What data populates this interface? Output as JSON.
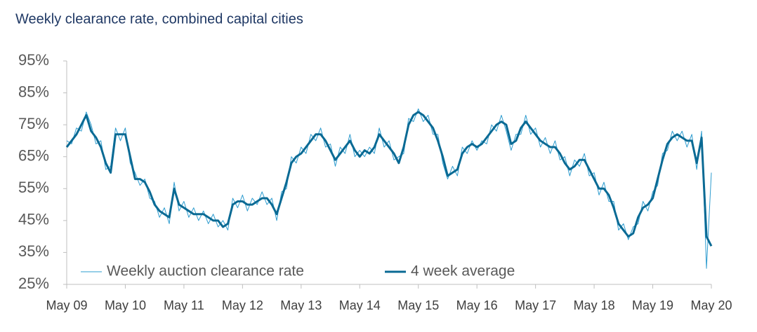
{
  "chart_data": {
    "type": "line",
    "title": "Weekly clearance rate, combined capital cities",
    "categories": [
      "May 09",
      null,
      null,
      null,
      null,
      null,
      null,
      null,
      null,
      null,
      null,
      null,
      "May 10",
      null,
      null,
      null,
      null,
      null,
      null,
      null,
      null,
      null,
      null,
      null,
      "May 11",
      null,
      null,
      null,
      null,
      null,
      null,
      null,
      null,
      null,
      null,
      null,
      "May 12",
      null,
      null,
      null,
      null,
      null,
      null,
      null,
      null,
      null,
      null,
      null,
      "May 13",
      null,
      null,
      null,
      null,
      null,
      null,
      null,
      null,
      null,
      null,
      null,
      "May 14",
      null,
      null,
      null,
      null,
      null,
      null,
      null,
      null,
      null,
      null,
      null,
      "May 15",
      null,
      null,
      null,
      null,
      null,
      null,
      null,
      null,
      null,
      null,
      null,
      "May 16",
      null,
      null,
      null,
      null,
      null,
      null,
      null,
      null,
      null,
      null,
      null,
      "May 17",
      null,
      null,
      null,
      null,
      null,
      null,
      null,
      null,
      null,
      null,
      null,
      "May 18",
      null,
      null,
      null,
      null,
      null,
      null,
      null,
      null,
      null,
      null,
      null,
      "May 19",
      null,
      null,
      null,
      null,
      null,
      null,
      null,
      null,
      null,
      null,
      null,
      "May 20"
    ],
    "series": [
      {
        "name": "Weekly auction clearance rate",
        "color": "#2e9ccf",
        "width": 1,
        "values": [
          70,
          69,
          74,
          73,
          79,
          75,
          69,
          70,
          61,
          62,
          74,
          70,
          74,
          63,
          60,
          56,
          58,
          52,
          51,
          46,
          49,
          44,
          57,
          48,
          51,
          46,
          49,
          45,
          48,
          44,
          47,
          43,
          45,
          42,
          52,
          49,
          53,
          48,
          52,
          50,
          54,
          50,
          52,
          45,
          54,
          55,
          65,
          63,
          68,
          66,
          72,
          70,
          74,
          68,
          69,
          62,
          68,
          66,
          72,
          65,
          67,
          65,
          68,
          66,
          74,
          68,
          70,
          64,
          65,
          66,
          77,
          76,
          80,
          76,
          78,
          72,
          72,
          63,
          58,
          62,
          59,
          68,
          66,
          70,
          67,
          70,
          69,
          75,
          73,
          78,
          73,
          67,
          72,
          72,
          78,
          72,
          74,
          68,
          71,
          66,
          70,
          64,
          65,
          59,
          64,
          62,
          66,
          59,
          60,
          53,
          57,
          51,
          51,
          42,
          44,
          39,
          43,
          44,
          51,
          48,
          54,
          56,
          66,
          67,
          73,
          70,
          73,
          68,
          72,
          61,
          73,
          30,
          60
        ]
      },
      {
        "name": "4 week average",
        "color": "#0a6a94",
        "width": 3,
        "values": [
          68,
          70,
          72,
          75,
          78,
          73,
          71,
          68,
          63,
          60,
          72,
          72,
          72,
          65,
          58,
          58,
          57,
          54,
          50,
          48,
          47,
          46,
          55,
          50,
          49,
          48,
          47,
          47,
          47,
          46,
          45,
          45,
          43,
          44,
          50,
          51,
          51,
          50,
          50,
          51,
          52,
          52,
          50,
          47,
          52,
          57,
          63,
          65,
          66,
          68,
          70,
          72,
          72,
          70,
          67,
          64,
          66,
          68,
          70,
          67,
          65,
          67,
          66,
          68,
          72,
          70,
          68,
          66,
          63,
          68,
          75,
          78,
          79,
          78,
          76,
          74,
          70,
          65,
          59,
          60,
          61,
          66,
          68,
          69,
          68,
          69,
          71,
          73,
          75,
          76,
          75,
          69,
          70,
          74,
          76,
          74,
          72,
          70,
          69,
          68,
          68,
          66,
          63,
          61,
          62,
          64,
          64,
          61,
          58,
          55,
          55,
          53,
          49,
          44,
          42,
          40,
          41,
          46,
          49,
          50,
          52,
          58,
          64,
          69,
          71,
          72,
          71,
          70,
          70,
          63,
          71,
          40,
          37
        ]
      }
    ],
    "ylim": [
      25,
      95
    ],
    "yticks": [
      {
        "value": 25,
        "label": "25%"
      },
      {
        "value": 35,
        "label": "35%"
      },
      {
        "value": 45,
        "label": "45%"
      },
      {
        "value": 55,
        "label": "55%"
      },
      {
        "value": 65,
        "label": "65%"
      },
      {
        "value": 75,
        "label": "75%"
      },
      {
        "value": 85,
        "label": "85%"
      },
      {
        "value": 95,
        "label": "95%"
      }
    ],
    "grid": false,
    "legend": "lower left"
  }
}
